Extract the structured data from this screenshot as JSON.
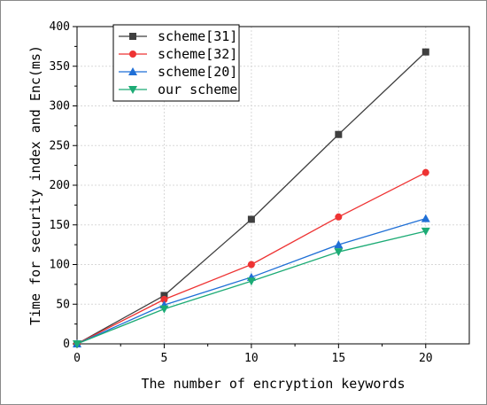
{
  "chart_data": {
    "type": "line",
    "xlabel": "The number of encryption keywords",
    "ylabel": "Time for security index and Enc(ms)",
    "xlim": [
      0,
      22.5
    ],
    "ylim": [
      0,
      400
    ],
    "xticks": [
      0,
      5,
      10,
      15,
      20
    ],
    "yticks": [
      0,
      50,
      100,
      150,
      200,
      250,
      300,
      350,
      400
    ],
    "grid": true,
    "legend_position": "top-left",
    "x": [
      0,
      5,
      10,
      15,
      20
    ],
    "series": [
      {
        "name": "scheme[31]",
        "values": [
          0,
          61,
          157,
          264,
          368
        ],
        "color": "#3f3f3f",
        "marker": "square"
      },
      {
        "name": "scheme[32]",
        "values": [
          0,
          56,
          100,
          160,
          216
        ],
        "color": "#ee3333",
        "marker": "circle"
      },
      {
        "name": "scheme[20]",
        "values": [
          0,
          49,
          84,
          125,
          158
        ],
        "color": "#1f6fd6",
        "marker": "triangle-up"
      },
      {
        "name": "our scheme",
        "values": [
          0,
          44,
          79,
          116,
          142
        ],
        "color": "#1cab75",
        "marker": "triangle-down"
      }
    ]
  }
}
